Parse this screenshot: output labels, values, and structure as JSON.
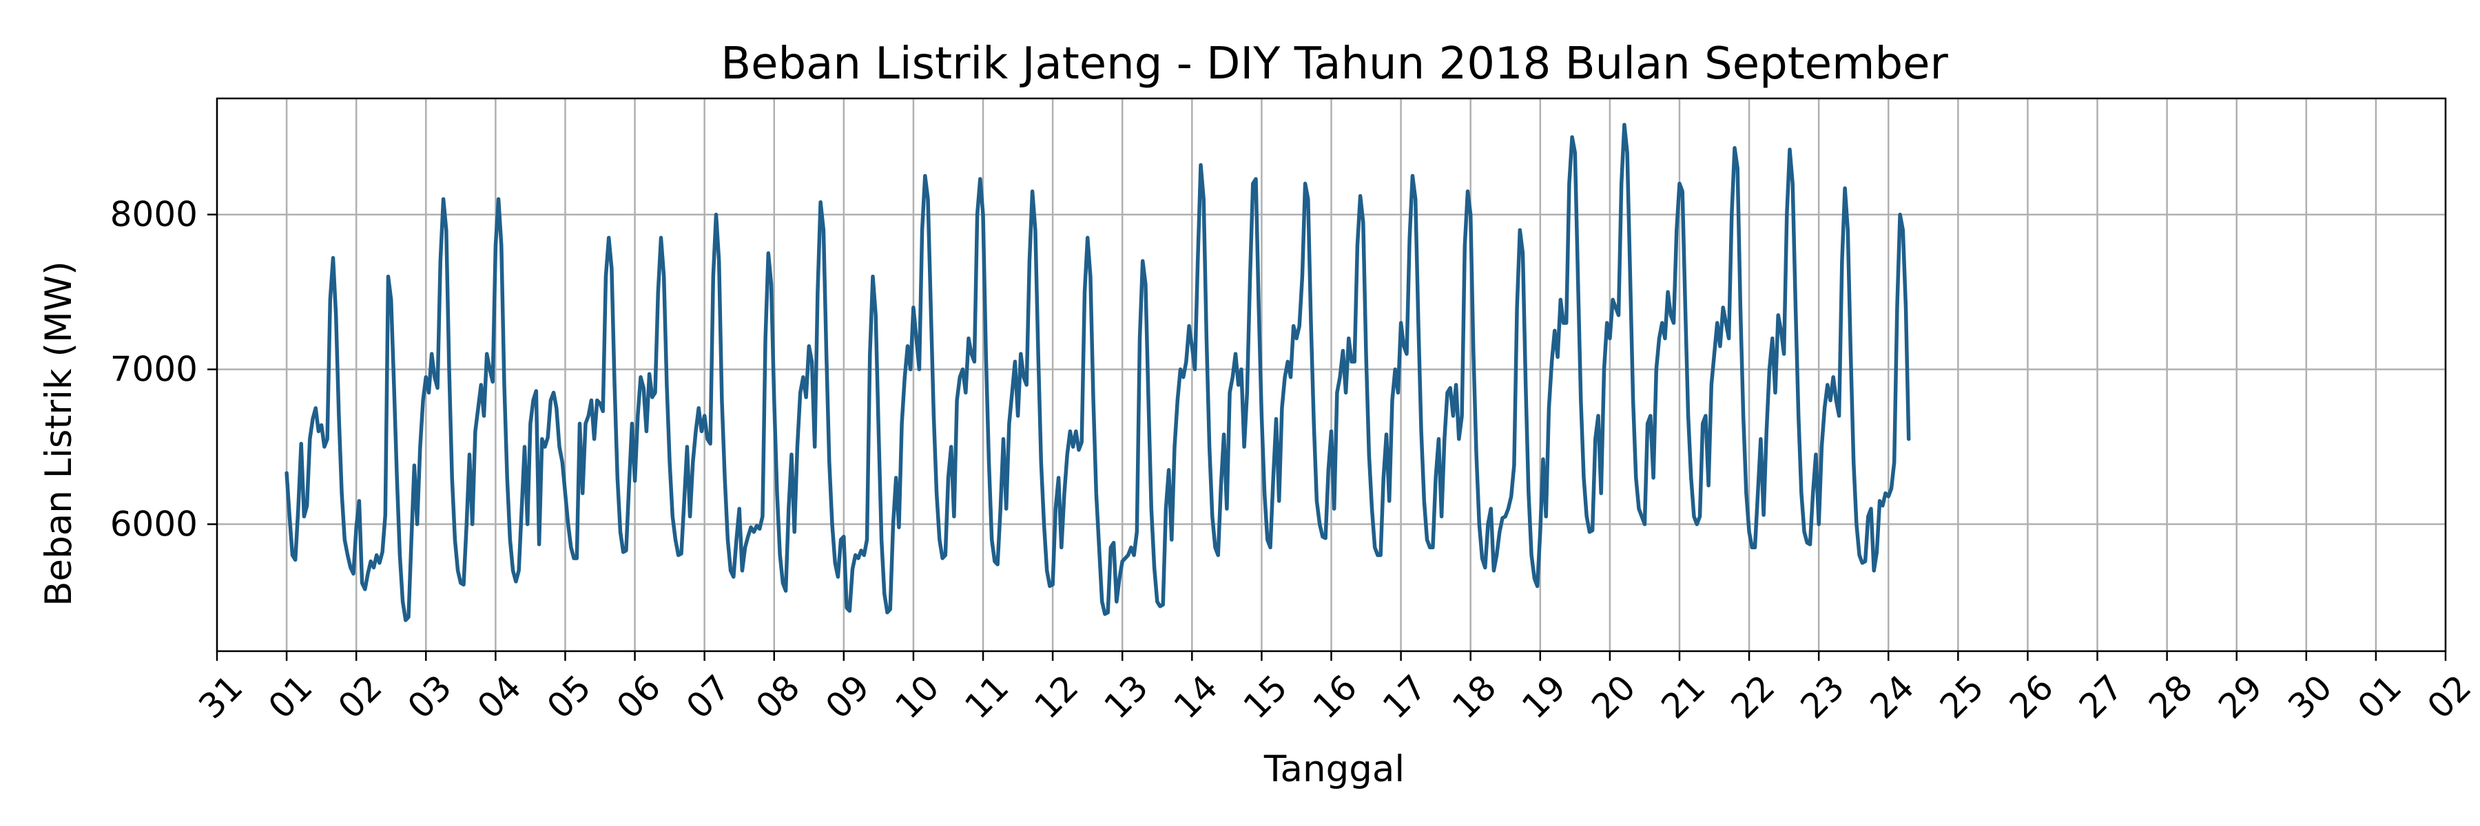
{
  "chart_data": {
    "type": "line",
    "title": "Beban Listrik Jateng - DIY Tahun 2018 Bulan September",
    "xlabel": "Tanggal",
    "ylabel": "Beban Listrik (MW)",
    "x_unit": "days of September 2018 (day 1 = 01 September 00:00)",
    "xlim": [
      0,
      32
    ],
    "ylim": [
      5180,
      8750
    ],
    "grid": true,
    "x_ticks": [
      {
        "value": 0,
        "label": "31"
      },
      {
        "value": 1,
        "label": "01"
      },
      {
        "value": 2,
        "label": "02"
      },
      {
        "value": 3,
        "label": "03"
      },
      {
        "value": 4,
        "label": "04"
      },
      {
        "value": 5,
        "label": "05"
      },
      {
        "value": 6,
        "label": "06"
      },
      {
        "value": 7,
        "label": "07"
      },
      {
        "value": 8,
        "label": "08"
      },
      {
        "value": 9,
        "label": "09"
      },
      {
        "value": 10,
        "label": "10"
      },
      {
        "value": 11,
        "label": "11"
      },
      {
        "value": 12,
        "label": "12"
      },
      {
        "value": 13,
        "label": "13"
      },
      {
        "value": 14,
        "label": "14"
      },
      {
        "value": 15,
        "label": "15"
      },
      {
        "value": 16,
        "label": "16"
      },
      {
        "value": 17,
        "label": "17"
      },
      {
        "value": 18,
        "label": "18"
      },
      {
        "value": 19,
        "label": "19"
      },
      {
        "value": 20,
        "label": "20"
      },
      {
        "value": 21,
        "label": "21"
      },
      {
        "value": 22,
        "label": "22"
      },
      {
        "value": 23,
        "label": "23"
      },
      {
        "value": 24,
        "label": "24"
      },
      {
        "value": 25,
        "label": "25"
      },
      {
        "value": 26,
        "label": "26"
      },
      {
        "value": 27,
        "label": "27"
      },
      {
        "value": 28,
        "label": "28"
      },
      {
        "value": 29,
        "label": "29"
      },
      {
        "value": 30,
        "label": "30"
      },
      {
        "value": 31,
        "label": "01"
      },
      {
        "value": 32,
        "label": "02"
      }
    ],
    "y_ticks": [
      {
        "value": 6000,
        "label": "6000"
      },
      {
        "value": 7000,
        "label": "7000"
      },
      {
        "value": 8000,
        "label": "8000"
      }
    ],
    "series": [
      {
        "color": "#1f5f8b",
        "sampling": "hourly",
        "x_start": 1,
        "x_step": 0.0416667,
        "values": [
          6330,
          6050,
          5800,
          5770,
          6100,
          6520,
          6050,
          6120,
          6550,
          6680,
          6750,
          6600,
          6640,
          6500,
          6550,
          7450,
          7720,
          7350,
          6700,
          6200,
          5900,
          5800,
          5720,
          5680,
          5980,
          6150,
          5620,
          5580,
          5680,
          5760,
          5720,
          5800,
          5750,
          5820,
          6060,
          7600,
          7450,
          6900,
          6300,
          5800,
          5500,
          5380,
          5400,
          5900,
          6380,
          6000,
          6500,
          6800,
          6950,
          6850,
          7100,
          6950,
          6880,
          7700,
          8100,
          7900,
          7000,
          6300,
          5900,
          5700,
          5620,
          5610,
          6000,
          6450,
          6000,
          6600,
          6750,
          6900,
          6700,
          7100,
          7000,
          6920,
          7800,
          8100,
          7800,
          6900,
          6300,
          5900,
          5700,
          5630,
          5700,
          6100,
          6500,
          6000,
          6650,
          6800,
          6860,
          5870,
          6550,
          6500,
          6560,
          6800,
          6850,
          6750,
          6500,
          6400,
          6200,
          6000,
          5850,
          5780,
          5780,
          6650,
          6200,
          6650,
          6700,
          6800,
          6550,
          6800,
          6780,
          6730,
          7600,
          7850,
          7650,
          6900,
          6300,
          5950,
          5820,
          5830,
          6250,
          6650,
          6280,
          6700,
          6950,
          6880,
          6600,
          6970,
          6820,
          6850,
          7500,
          7850,
          7600,
          6900,
          6400,
          6050,
          5900,
          5800,
          5810,
          6150,
          6500,
          6050,
          6400,
          6600,
          6750,
          6600,
          6700,
          6550,
          6520,
          7600,
          8000,
          7700,
          6800,
          6300,
          5900,
          5700,
          5660,
          5900,
          6100,
          5700,
          5850,
          5920,
          5980,
          5950,
          5990,
          5970,
          6050,
          7200,
          7750,
          7550,
          6800,
          6200,
          5800,
          5620,
          5570,
          6100,
          6450,
          5950,
          6500,
          6850,
          6950,
          6820,
          7150,
          7050,
          6500,
          7500,
          8080,
          7900,
          7100,
          6400,
          6000,
          5750,
          5660,
          5900,
          5920,
          5460,
          5440,
          5710,
          5800,
          5780,
          5830,
          5800,
          5900,
          7100,
          7600,
          7350,
          6600,
          5900,
          5550,
          5430,
          5450,
          6000,
          6300,
          5980,
          6650,
          6950,
          7150,
          7000,
          7400,
          7200,
          7000,
          7900,
          8250,
          8100,
          7400,
          6700,
          6200,
          5900,
          5780,
          5800,
          6300,
          6500,
          6050,
          6800,
          6950,
          7000,
          6850,
          7200,
          7100,
          7050,
          8000,
          8230,
          8000,
          7100,
          6400,
          5900,
          5760,
          5740,
          6100,
          6550,
          6100,
          6650,
          6850,
          7050,
          6700,
          7100,
          6950,
          6900,
          7700,
          8150,
          7900,
          7100,
          6400,
          6000,
          5700,
          5600,
          5610,
          6100,
          6300,
          5850,
          6200,
          6450,
          6600,
          6500,
          6600,
          6480,
          6530,
          7500,
          7850,
          7600,
          6800,
          6200,
          5850,
          5500,
          5420,
          5430,
          5850,
          5880,
          5500,
          5650,
          5760,
          5780,
          5800,
          5850,
          5800,
          5950,
          7200,
          7700,
          7550,
          6800,
          6100,
          5720,
          5500,
          5470,
          5480,
          6100,
          6350,
          5900,
          6500,
          6800,
          7000,
          6950,
          7050,
          7280,
          7150,
          7000,
          7700,
          8320,
          8100,
          7200,
          6500,
          6050,
          5850,
          5800,
          6250,
          6580,
          6100,
          6850,
          6950,
          7100,
          6900,
          7000,
          6500,
          6850,
          7600,
          8200,
          8230,
          7400,
          6700,
          6200,
          5900,
          5850,
          6300,
          6680,
          6150,
          6750,
          6950,
          7050,
          6950,
          7280,
          7200,
          7280,
          7600,
          8200,
          8100,
          7300,
          6650,
          6150,
          6000,
          5920,
          5910,
          6350,
          6600,
          6100,
          6850,
          6950,
          7120,
          6850,
          7200,
          7050,
          7050,
          7800,
          8120,
          7950,
          7100,
          6450,
          6100,
          5850,
          5800,
          5800,
          6300,
          6580,
          6150,
          6800,
          7000,
          6850,
          7300,
          7150,
          7100,
          7850,
          8250,
          8100,
          7300,
          6600,
          6150,
          5900,
          5850,
          5850,
          6300,
          6550,
          6050,
          6550,
          6850,
          6880,
          6700,
          6900,
          6550,
          6700,
          7800,
          8150,
          8000,
          7100,
          6450,
          6000,
          5780,
          5720,
          6000,
          6100,
          5700,
          5800,
          5950,
          6040,
          6050,
          6100,
          6180,
          6380,
          7400,
          7900,
          7750,
          6900,
          6200,
          5800,
          5650,
          5600,
          5950,
          6420,
          6050,
          6750,
          7050,
          7250,
          7080,
          7450,
          7300,
          7300,
          8200,
          8500,
          8400,
          7600,
          6800,
          6300,
          6050,
          5950,
          5960,
          6550,
          6700,
          6200,
          7000,
          7300,
          7200,
          7450,
          7400,
          7350,
          8200,
          8580,
          8400,
          7600,
          6800,
          6300,
          6100,
          6050,
          6000,
          6650,
          6700,
          6300,
          7000,
          7200,
          7300,
          7200,
          7500,
          7350,
          7300,
          7900,
          8200,
          8150,
          7400,
          6700,
          6300,
          6050,
          6000,
          6050,
          6650,
          6700,
          6250,
          6900,
          7100,
          7300,
          7150,
          7400,
          7300,
          7200,
          8000,
          8430,
          8300,
          7400,
          6700,
          6200,
          5950,
          5850,
          5850,
          6200,
          6550,
          6060,
          6600,
          7000,
          7200,
          6850,
          7350,
          7250,
          7100,
          8000,
          8420,
          8200,
          7400,
          6700,
          6200,
          5950,
          5880,
          5870,
          6200,
          6450,
          6000,
          6500,
          6750,
          6900,
          6800,
          6950,
          6800,
          6700,
          7700,
          8170,
          7900,
          7100,
          6400,
          6000,
          5800,
          5750,
          5760,
          6050,
          6100,
          5700,
          5820,
          6150,
          6120,
          6200,
          6180,
          6230,
          6400,
          7400,
          8000,
          7900,
          7400,
          6550
        ]
      }
    ]
  }
}
